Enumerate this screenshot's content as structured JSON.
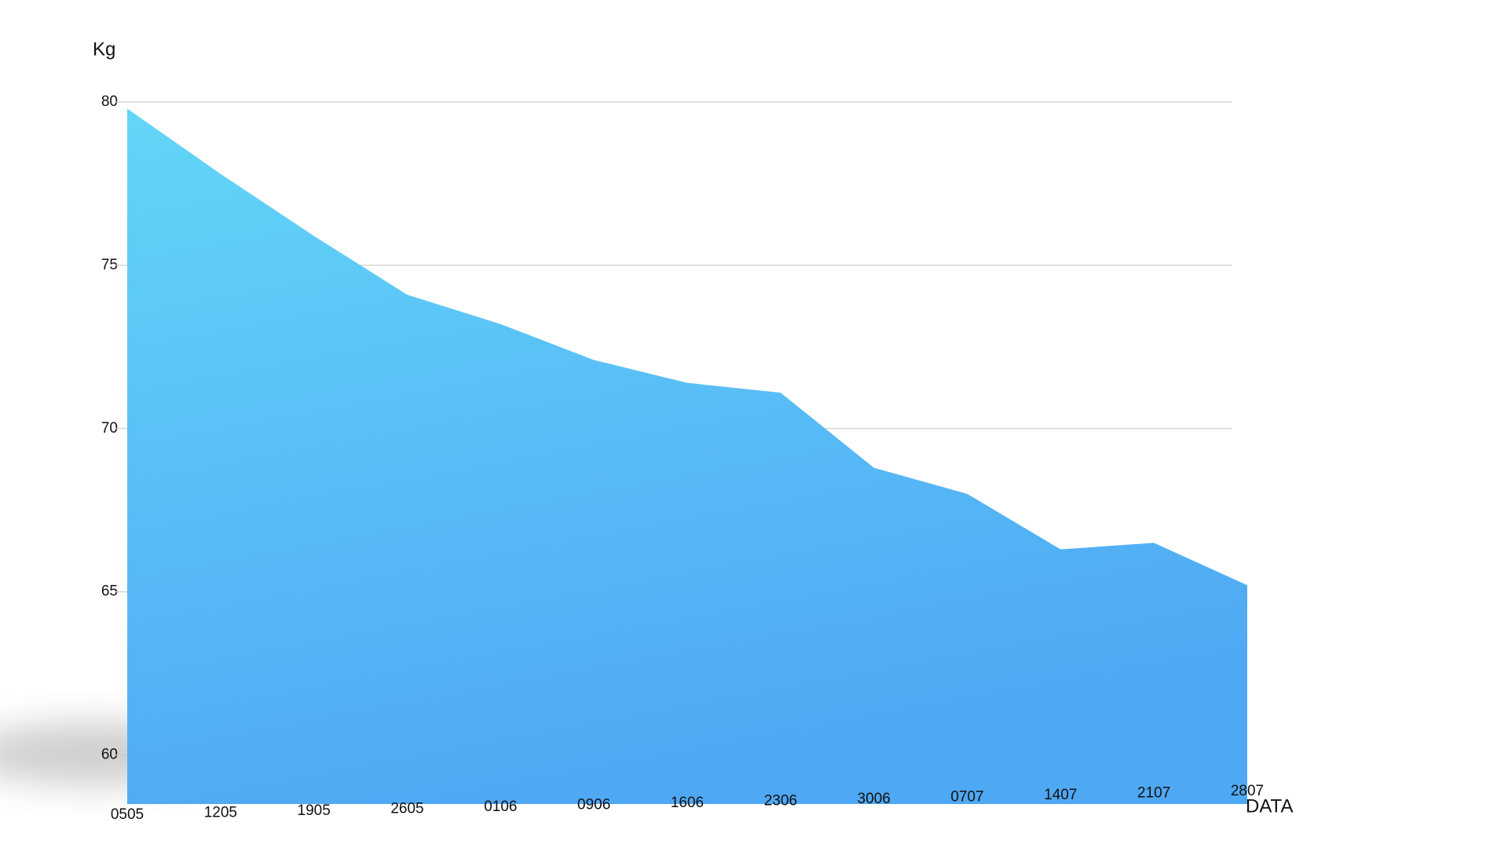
{
  "chart_data": {
    "type": "area",
    "y_label": "Kg",
    "x_label": "DATA",
    "categories": [
      "0505",
      "1205",
      "1905",
      "2605",
      "0106",
      "0906",
      "1606",
      "2306",
      "3006",
      "0707",
      "1407",
      "2107",
      "2807"
    ],
    "series": [
      {
        "color": "#5ac8f5",
        "values": [
          79.8,
          77.8,
          75.9,
          74.1,
          73.2,
          72.1,
          71.4,
          71.1,
          68.8,
          68.0,
          66.3,
          66.5,
          65.2
        ]
      }
    ],
    "ylim": [
      58.5,
      80
    ],
    "yticks": [
      60,
      65,
      70,
      75,
      80
    ],
    "grid": true
  }
}
